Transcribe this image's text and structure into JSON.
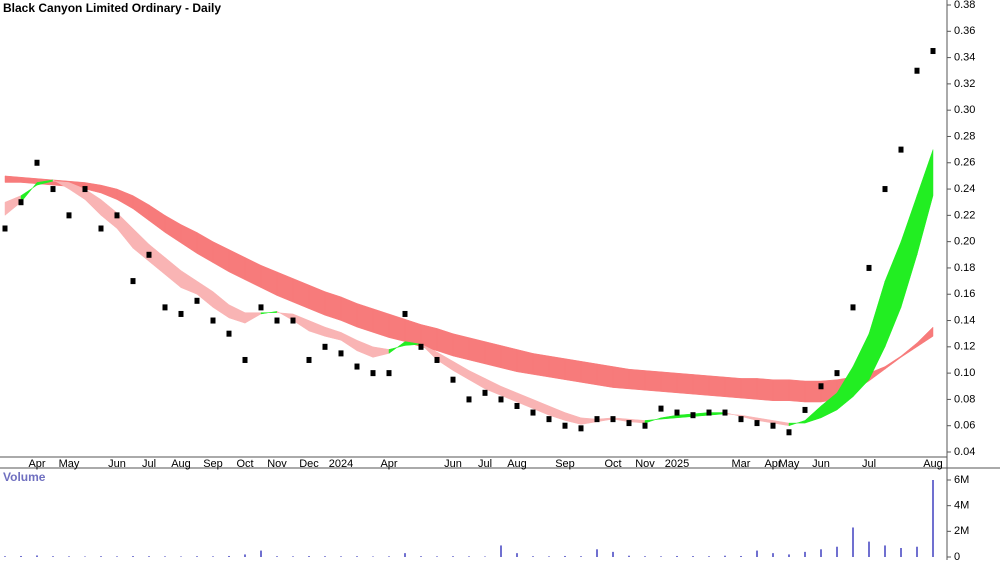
{
  "chart_data": [
    {
      "type": "price",
      "title": "Black Canyon Limited Ordinary - Daily",
      "categories": [
        null,
        null,
        "Apr",
        null,
        "May",
        null,
        null,
        "Jun",
        null,
        "Jul",
        null,
        "Aug",
        null,
        "Sep",
        null,
        "Oct",
        null,
        "Nov",
        null,
        "Dec",
        null,
        "2024",
        null,
        null,
        "Apr",
        null,
        null,
        null,
        "Jun",
        null,
        "Jul",
        null,
        "Aug",
        null,
        null,
        "Sep",
        null,
        null,
        "Oct",
        null,
        "Nov",
        null,
        "2025",
        null,
        null,
        null,
        "Mar",
        null,
        "Apr",
        "May",
        null,
        "Jun",
        null,
        null,
        "Jul",
        null,
        null,
        null,
        "Aug"
      ],
      "values": [
        0.21,
        0.23,
        0.26,
        0.24,
        0.22,
        0.24,
        0.21,
        0.22,
        0.17,
        0.19,
        0.15,
        0.145,
        0.155,
        0.14,
        0.13,
        0.11,
        0.15,
        0.14,
        0.14,
        0.11,
        0.12,
        0.115,
        0.105,
        0.1,
        0.1,
        0.145,
        0.12,
        0.11,
        0.095,
        0.08,
        0.085,
        0.08,
        0.075,
        0.07,
        0.065,
        0.06,
        0.058,
        0.065,
        0.065,
        0.062,
        0.06,
        0.073,
        0.07,
        0.068,
        0.07,
        0.07,
        0.065,
        0.062,
        0.06,
        0.055,
        0.072,
        0.09,
        0.1,
        0.15,
        0.18,
        0.24,
        0.27,
        0.33,
        0.345
      ],
      "color": "#000000",
      "ribbons": [
        {
          "fast": [
            0.245,
            0.245,
            0.244,
            0.243,
            0.242,
            0.24,
            0.237,
            0.232,
            0.225,
            0.216,
            0.207,
            0.199,
            0.191,
            0.184,
            0.177,
            0.171,
            0.165,
            0.159,
            0.154,
            0.149,
            0.144,
            0.14,
            0.135,
            0.131,
            0.127,
            0.124,
            0.12,
            0.117,
            0.113,
            0.11,
            0.107,
            0.104,
            0.101,
            0.099,
            0.097,
            0.095,
            0.093,
            0.091,
            0.089,
            0.088,
            0.087,
            0.086,
            0.085,
            0.084,
            0.083,
            0.082,
            0.081,
            0.08,
            0.079,
            0.079,
            0.078,
            0.078,
            0.08,
            0.086,
            0.094,
            0.103,
            0.112,
            0.12,
            0.128
          ],
          "slow": [
            0.25,
            0.249,
            0.248,
            0.247,
            0.246,
            0.245,
            0.243,
            0.24,
            0.235,
            0.228,
            0.22,
            0.213,
            0.207,
            0.2,
            0.194,
            0.188,
            0.182,
            0.177,
            0.172,
            0.167,
            0.162,
            0.158,
            0.153,
            0.149,
            0.145,
            0.141,
            0.137,
            0.134,
            0.13,
            0.127,
            0.124,
            0.121,
            0.118,
            0.115,
            0.113,
            0.111,
            0.109,
            0.107,
            0.105,
            0.103,
            0.102,
            0.101,
            0.1,
            0.099,
            0.098,
            0.097,
            0.096,
            0.096,
            0.095,
            0.095,
            0.094,
            0.094,
            0.095,
            0.097,
            0.1,
            0.105,
            0.113,
            0.123,
            0.135
          ],
          "up_color": "#3aa05a",
          "down_color": "#f77b7b"
        },
        {
          "fast": [
            0.22,
            0.23,
            0.245,
            0.247,
            0.24,
            0.232,
            0.22,
            0.21,
            0.195,
            0.185,
            0.175,
            0.165,
            0.16,
            0.15,
            0.142,
            0.138,
            0.145,
            0.147,
            0.14,
            0.132,
            0.128,
            0.125,
            0.117,
            0.112,
            0.115,
            0.124,
            0.122,
            0.11,
            0.102,
            0.095,
            0.088,
            0.083,
            0.078,
            0.073,
            0.068,
            0.064,
            0.061,
            0.063,
            0.065,
            0.063,
            0.062,
            0.066,
            0.068,
            0.069,
            0.07,
            0.07,
            0.067,
            0.064,
            0.062,
            0.06,
            0.064,
            0.075,
            0.085,
            0.105,
            0.13,
            0.17,
            0.2,
            0.235,
            0.27
          ],
          "slow": [
            0.23,
            0.235,
            0.243,
            0.246,
            0.245,
            0.24,
            0.232,
            0.222,
            0.21,
            0.198,
            0.188,
            0.178,
            0.17,
            0.162,
            0.152,
            0.146,
            0.146,
            0.146,
            0.145,
            0.14,
            0.135,
            0.131,
            0.125,
            0.12,
            0.118,
            0.121,
            0.122,
            0.116,
            0.109,
            0.102,
            0.096,
            0.09,
            0.085,
            0.08,
            0.075,
            0.07,
            0.066,
            0.065,
            0.066,
            0.065,
            0.064,
            0.065,
            0.066,
            0.067,
            0.068,
            0.069,
            0.068,
            0.066,
            0.064,
            0.062,
            0.062,
            0.066,
            0.072,
            0.082,
            0.095,
            0.12,
            0.15,
            0.19,
            0.235
          ],
          "up_color": "#22ee22",
          "down_color": "#f9b4b4"
        }
      ],
      "ylim": [
        0.04,
        0.38
      ],
      "yticks": [
        0.04,
        0.06,
        0.08,
        {
          "value": 0.1,
          "label": "0.10"
        },
        0.12,
        0.14,
        0.16,
        0.18,
        {
          "value": 0.2,
          "label": "0.20"
        },
        0.22,
        0.24,
        0.26,
        0.28,
        {
          "value": 0.3,
          "label": "0.30"
        },
        0.32,
        0.34,
        0.36,
        0.38
      ]
    },
    {
      "type": "bar",
      "title": "Volume",
      "color": "#7070d0",
      "values": [
        60000,
        80000,
        120000,
        60000,
        50000,
        40000,
        60000,
        50000,
        70000,
        60000,
        50000,
        40000,
        60000,
        50000,
        80000,
        200000,
        500000,
        60000,
        50000,
        70000,
        60000,
        50000,
        60000,
        40000,
        50000,
        300000,
        60000,
        50000,
        60000,
        50000,
        40000,
        900000,
        300000,
        60000,
        50000,
        80000,
        60000,
        600000,
        400000,
        100000,
        60000,
        50000,
        80000,
        70000,
        60000,
        100000,
        80000,
        500000,
        300000,
        200000,
        400000,
        600000,
        800000,
        2300000,
        1200000,
        900000,
        700000,
        800000,
        6000000
      ],
      "ylim": [
        0,
        6000000
      ],
      "yticks": [
        0,
        {
          "value": 2000000,
          "label": "2M"
        },
        {
          "value": 4000000,
          "label": "4M"
        },
        {
          "value": 6000000,
          "label": "6M"
        }
      ]
    }
  ]
}
